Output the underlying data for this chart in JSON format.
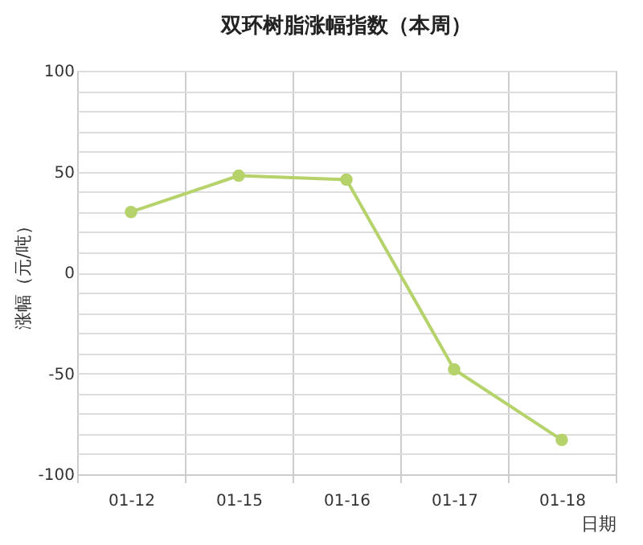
{
  "chart_data": {
    "type": "line",
    "title": "双环树脂涨幅指数（本周）",
    "xlabel": "日期",
    "ylabel": "涨幅（元/吨）",
    "categories": [
      "01-12",
      "01-15",
      "01-16",
      "01-17",
      "01-18"
    ],
    "series": [
      {
        "color": "#b5d36a",
        "values": [
          30,
          48,
          46,
          -48,
          -83
        ]
      }
    ],
    "ylim": [
      -100,
      100
    ],
    "yticks": [
      -100,
      {
        "value": -90,
        "label": null
      },
      {
        "value": -80,
        "label": null
      },
      {
        "value": -70,
        "label": null
      },
      {
        "value": -60,
        "label": null
      },
      -50,
      {
        "value": -40,
        "label": null
      },
      {
        "value": -30,
        "label": null
      },
      {
        "value": -20,
        "label": null
      },
      {
        "value": -10,
        "label": null
      },
      0,
      {
        "value": 10,
        "label": null
      },
      {
        "value": 20,
        "label": null
      },
      {
        "value": 30,
        "label": null
      },
      {
        "value": 40,
        "label": null
      },
      50,
      {
        "value": 60,
        "label": null
      },
      {
        "value": 70,
        "label": null
      },
      {
        "value": 80,
        "label": null
      },
      {
        "value": 90,
        "label": null
      },
      100
    ],
    "grid": true,
    "marker": "circle",
    "line_style": "solid"
  }
}
